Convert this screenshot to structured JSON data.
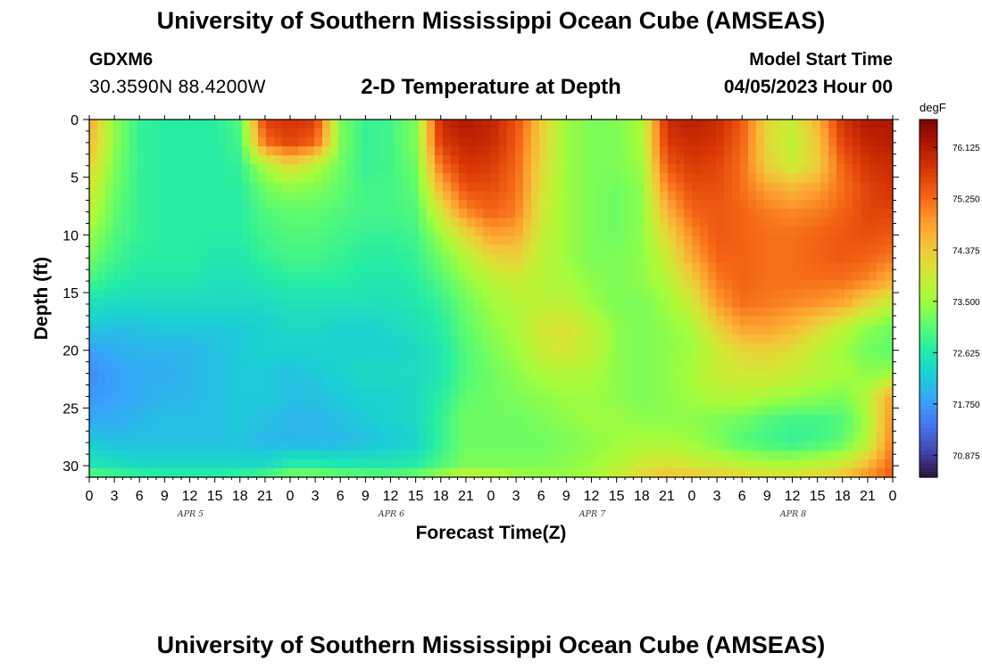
{
  "header": {
    "title": "University of Southern Mississippi Ocean Cube (AMSEAS)",
    "station": "GDXM6",
    "coordinates": "30.3590N  88.4200W",
    "subtitle": "2-D Temperature at Depth",
    "model_start_label": "Model Start Time",
    "model_start_value": "04/05/2023 Hour 00"
  },
  "footer": {
    "title": "University of Southern Mississippi Ocean Cube (AMSEAS)"
  },
  "chart_data": {
    "type": "heatmap",
    "title": "2-D Temperature at Depth",
    "xlabel": "Forecast Time(Z)",
    "ylabel": "Depth (ft)",
    "x_ticks": [
      "0",
      "3",
      "6",
      "9",
      "12",
      "15",
      "18",
      "21",
      "0",
      "3",
      "6",
      "9",
      "12",
      "15",
      "18",
      "21",
      "0",
      "3",
      "6",
      "9",
      "12",
      "15",
      "18",
      "21",
      "0",
      "3",
      "6",
      "9",
      "12",
      "15",
      "18",
      "21",
      "0"
    ],
    "x_day_labels": [
      "APR 5",
      "APR 6",
      "APR 7",
      "APR 8"
    ],
    "xlim_hours": [
      0,
      96
    ],
    "y_ticks": [
      0,
      5,
      10,
      15,
      20,
      25,
      30
    ],
    "ylim": [
      0,
      31
    ],
    "colorbar": {
      "unit": "degF",
      "ticks": [
        "76.125",
        "75.250",
        "74.375",
        "73.500",
        "72.625",
        "71.750",
        "70.875"
      ],
      "range": [
        70.5,
        76.6
      ],
      "colors": [
        "#30123b",
        "#4145ab",
        "#4675ed",
        "#39a2fc",
        "#1bcfd4",
        "#24eca6",
        "#61fc6c",
        "#a4fc3b",
        "#d1e834",
        "#f3c63a",
        "#fe9b2d",
        "#f36315",
        "#d93806",
        "#b11901",
        "#7a0403"
      ]
    },
    "depths_ft": [
      0,
      2,
      4,
      6,
      8,
      10,
      12,
      14,
      16,
      18,
      20,
      22,
      24,
      26,
      28,
      30,
      31
    ],
    "times_h": [
      0,
      3,
      6,
      9,
      12,
      15,
      18,
      21,
      24,
      27,
      30,
      33,
      36,
      39,
      42,
      45,
      48,
      51,
      54,
      57,
      60,
      63,
      66,
      69,
      72,
      75,
      78,
      81,
      84,
      87,
      90,
      93,
      96
    ],
    "temperature_degF": [
      [
        74.8,
        73.4,
        72.8,
        72.7,
        72.7,
        72.7,
        73.0,
        75.7,
        75.8,
        75.7,
        73.3,
        72.8,
        72.9,
        73.3,
        75.9,
        76.2,
        76.0,
        75.5,
        74.4,
        73.5,
        73.3,
        73.3,
        73.6,
        75.9,
        76.1,
        75.9,
        75.4,
        74.2,
        73.9,
        74.6,
        75.8,
        76.2,
        76.2
      ],
      [
        74.6,
        73.4,
        72.8,
        72.7,
        72.7,
        72.7,
        72.9,
        75.2,
        75.6,
        75.3,
        73.3,
        72.8,
        72.9,
        73.3,
        75.7,
        76.0,
        75.9,
        75.4,
        74.3,
        73.5,
        73.3,
        73.3,
        73.6,
        75.7,
        75.9,
        75.8,
        75.3,
        74.2,
        73.8,
        74.4,
        75.6,
        76.0,
        76.1
      ],
      [
        74.3,
        73.3,
        72.8,
        72.7,
        72.7,
        72.7,
        72.8,
        73.6,
        74.2,
        73.7,
        73.2,
        72.8,
        72.9,
        73.2,
        75.2,
        75.8,
        75.7,
        75.3,
        74.2,
        73.5,
        73.3,
        73.3,
        73.5,
        75.4,
        75.7,
        75.6,
        75.2,
        74.3,
        73.9,
        74.3,
        75.3,
        75.8,
        75.9
      ],
      [
        74.0,
        73.2,
        72.8,
        72.7,
        72.7,
        72.7,
        72.7,
        73.2,
        73.4,
        73.3,
        73.1,
        72.9,
        72.9,
        73.1,
        74.6,
        75.5,
        75.5,
        75.2,
        74.1,
        73.5,
        73.3,
        73.2,
        73.4,
        75.0,
        75.5,
        75.5,
        75.2,
        74.8,
        74.6,
        74.8,
        75.2,
        75.6,
        75.8
      ],
      [
        73.8,
        73.1,
        72.8,
        72.7,
        72.7,
        72.7,
        72.7,
        73.0,
        73.1,
        73.1,
        73.0,
        72.9,
        72.9,
        73.0,
        74.0,
        75.0,
        75.3,
        75.1,
        74.0,
        73.5,
        73.3,
        73.2,
        73.4,
        74.6,
        75.3,
        75.4,
        75.3,
        75.1,
        75.0,
        75.1,
        75.3,
        75.6,
        75.6
      ],
      [
        73.5,
        73.0,
        72.8,
        72.7,
        72.7,
        72.7,
        72.7,
        72.9,
        73.0,
        73.0,
        72.9,
        72.8,
        72.8,
        72.9,
        73.5,
        74.2,
        74.8,
        74.7,
        73.9,
        73.5,
        73.3,
        73.2,
        73.4,
        74.2,
        75.0,
        75.4,
        75.3,
        75.2,
        75.2,
        75.3,
        75.4,
        75.5,
        75.4
      ],
      [
        73.2,
        72.9,
        72.7,
        72.7,
        72.7,
        72.6,
        72.6,
        72.8,
        72.9,
        72.9,
        72.8,
        72.7,
        72.7,
        72.8,
        73.2,
        73.7,
        74.2,
        74.3,
        73.8,
        73.5,
        73.3,
        73.3,
        73.4,
        73.9,
        74.7,
        75.3,
        75.3,
        75.2,
        75.2,
        75.3,
        75.4,
        75.3,
        75.1
      ],
      [
        72.9,
        72.7,
        72.6,
        72.6,
        72.6,
        72.5,
        72.5,
        72.6,
        72.7,
        72.7,
        72.7,
        72.6,
        72.6,
        72.7,
        73.0,
        73.4,
        73.7,
        73.9,
        73.7,
        73.6,
        73.4,
        73.3,
        73.4,
        73.7,
        74.3,
        75.1,
        75.3,
        75.2,
        75.2,
        75.2,
        75.2,
        75.0,
        74.6
      ],
      [
        72.5,
        72.4,
        72.4,
        72.4,
        72.4,
        72.4,
        72.4,
        72.4,
        72.5,
        72.5,
        72.5,
        72.5,
        72.5,
        72.6,
        72.8,
        73.2,
        73.5,
        73.7,
        73.8,
        73.8,
        73.5,
        73.3,
        73.3,
        73.5,
        73.9,
        74.8,
        75.2,
        75.1,
        75.0,
        74.9,
        74.7,
        74.2,
        73.8
      ],
      [
        72.2,
        72.1,
        72.1,
        72.2,
        72.2,
        72.2,
        72.2,
        72.3,
        72.4,
        72.4,
        72.3,
        72.3,
        72.4,
        72.5,
        72.7,
        73.1,
        73.4,
        73.6,
        74.0,
        74.1,
        73.8,
        73.4,
        73.3,
        73.4,
        73.6,
        74.3,
        74.8,
        74.8,
        74.6,
        74.2,
        73.8,
        73.4,
        73.2
      ],
      [
        71.8,
        71.9,
        72.0,
        72.0,
        72.0,
        72.1,
        72.2,
        72.3,
        72.3,
        72.3,
        72.3,
        72.3,
        72.3,
        72.4,
        72.6,
        73.0,
        73.3,
        73.5,
        73.9,
        74.0,
        73.8,
        73.4,
        73.3,
        73.4,
        73.5,
        73.9,
        74.2,
        74.3,
        74.1,
        73.8,
        73.5,
        73.2,
        73.1
      ],
      [
        71.6,
        71.8,
        71.9,
        71.9,
        72.0,
        72.1,
        72.2,
        72.2,
        72.1,
        72.2,
        72.3,
        72.4,
        72.4,
        72.4,
        72.6,
        73.0,
        73.2,
        73.4,
        73.6,
        73.7,
        73.6,
        73.4,
        73.3,
        73.4,
        73.6,
        73.9,
        74.0,
        74.0,
        73.9,
        73.7,
        73.6,
        73.4,
        73.5
      ],
      [
        71.7,
        71.8,
        71.9,
        72.0,
        72.0,
        72.1,
        72.2,
        72.2,
        72.1,
        72.1,
        72.2,
        72.3,
        72.3,
        72.4,
        72.7,
        73.1,
        73.2,
        73.3,
        73.4,
        73.5,
        73.5,
        73.4,
        73.3,
        73.4,
        73.5,
        73.7,
        73.7,
        73.6,
        73.5,
        73.4,
        73.3,
        73.7,
        74.8
      ],
      [
        71.9,
        71.9,
        72.0,
        72.1,
        72.1,
        72.1,
        72.2,
        72.1,
        72.0,
        72.0,
        72.1,
        72.2,
        72.3,
        72.4,
        72.8,
        73.2,
        73.2,
        73.2,
        73.3,
        73.4,
        73.5,
        73.5,
        73.4,
        73.4,
        73.4,
        73.3,
        73.2,
        73.0,
        72.9,
        72.9,
        73.0,
        73.6,
        75.0
      ],
      [
        72.2,
        72.1,
        72.1,
        72.1,
        72.1,
        72.1,
        72.1,
        72.0,
        72.0,
        72.0,
        72.0,
        72.1,
        72.2,
        72.3,
        72.8,
        73.2,
        73.2,
        73.2,
        73.2,
        73.3,
        73.4,
        73.5,
        73.6,
        73.6,
        73.5,
        73.3,
        73.0,
        72.9,
        72.8,
        72.9,
        73.1,
        73.7,
        75.1
      ],
      [
        72.6,
        72.5,
        72.4,
        72.4,
        72.4,
        72.4,
        72.4,
        72.4,
        72.7,
        72.7,
        72.6,
        72.6,
        72.6,
        72.7,
        73.0,
        73.3,
        73.3,
        73.3,
        73.3,
        73.4,
        73.5,
        73.7,
        74.0,
        74.1,
        74.0,
        73.9,
        73.8,
        73.7,
        73.7,
        73.8,
        74.0,
        74.6,
        75.3
      ],
      [
        73.2,
        73.0,
        72.9,
        72.8,
        72.8,
        72.8,
        72.9,
        73.1,
        73.4,
        73.4,
        73.3,
        73.2,
        73.2,
        73.3,
        73.6,
        74.0,
        73.8,
        73.6,
        73.5,
        73.5,
        73.6,
        73.9,
        74.3,
        74.5,
        74.5,
        74.4,
        74.3,
        74.2,
        74.2,
        74.3,
        74.5,
        75.0,
        75.4
      ]
    ]
  }
}
